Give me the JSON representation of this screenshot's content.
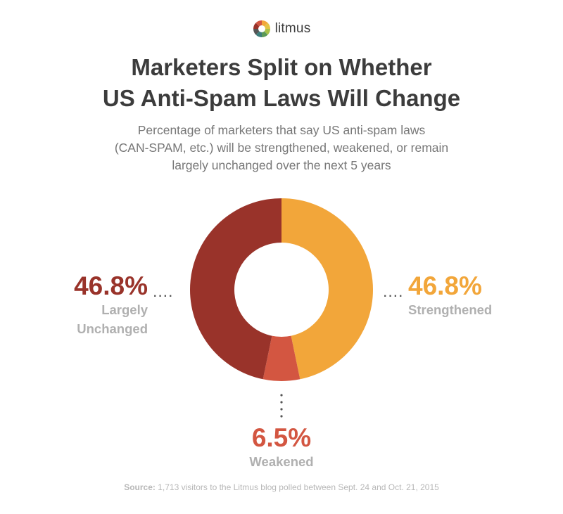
{
  "brand": {
    "name": "litmus"
  },
  "chart_data": {
    "type": "pie",
    "donut": true,
    "title_lines": [
      "Marketers Split on Whether",
      "US Anti-Spam Laws Will Change"
    ],
    "subtitle_lines": [
      "Percentage of marketers that say US anti-spam laws",
      "(CAN-SPAM, etc.) will be strengthened, weakened, or remain",
      "largely unchanged over the next 5 years"
    ],
    "slices": [
      {
        "label": "Strengthened",
        "value": 46.8,
        "display": "46.8%",
        "color": "#f2a63a"
      },
      {
        "label": "Weakened",
        "value": 6.5,
        "display": "6.5%",
        "color": "#d35641"
      },
      {
        "label_lines": [
          "Largely",
          "Unchanged"
        ],
        "value": 46.8,
        "display": "46.8%",
        "color": "#99332a"
      }
    ],
    "source_label": "Source:",
    "source_text": " 1,713 visitors to the Litmus blog polled between Sept. 24 and Oct. 21, 2015"
  }
}
